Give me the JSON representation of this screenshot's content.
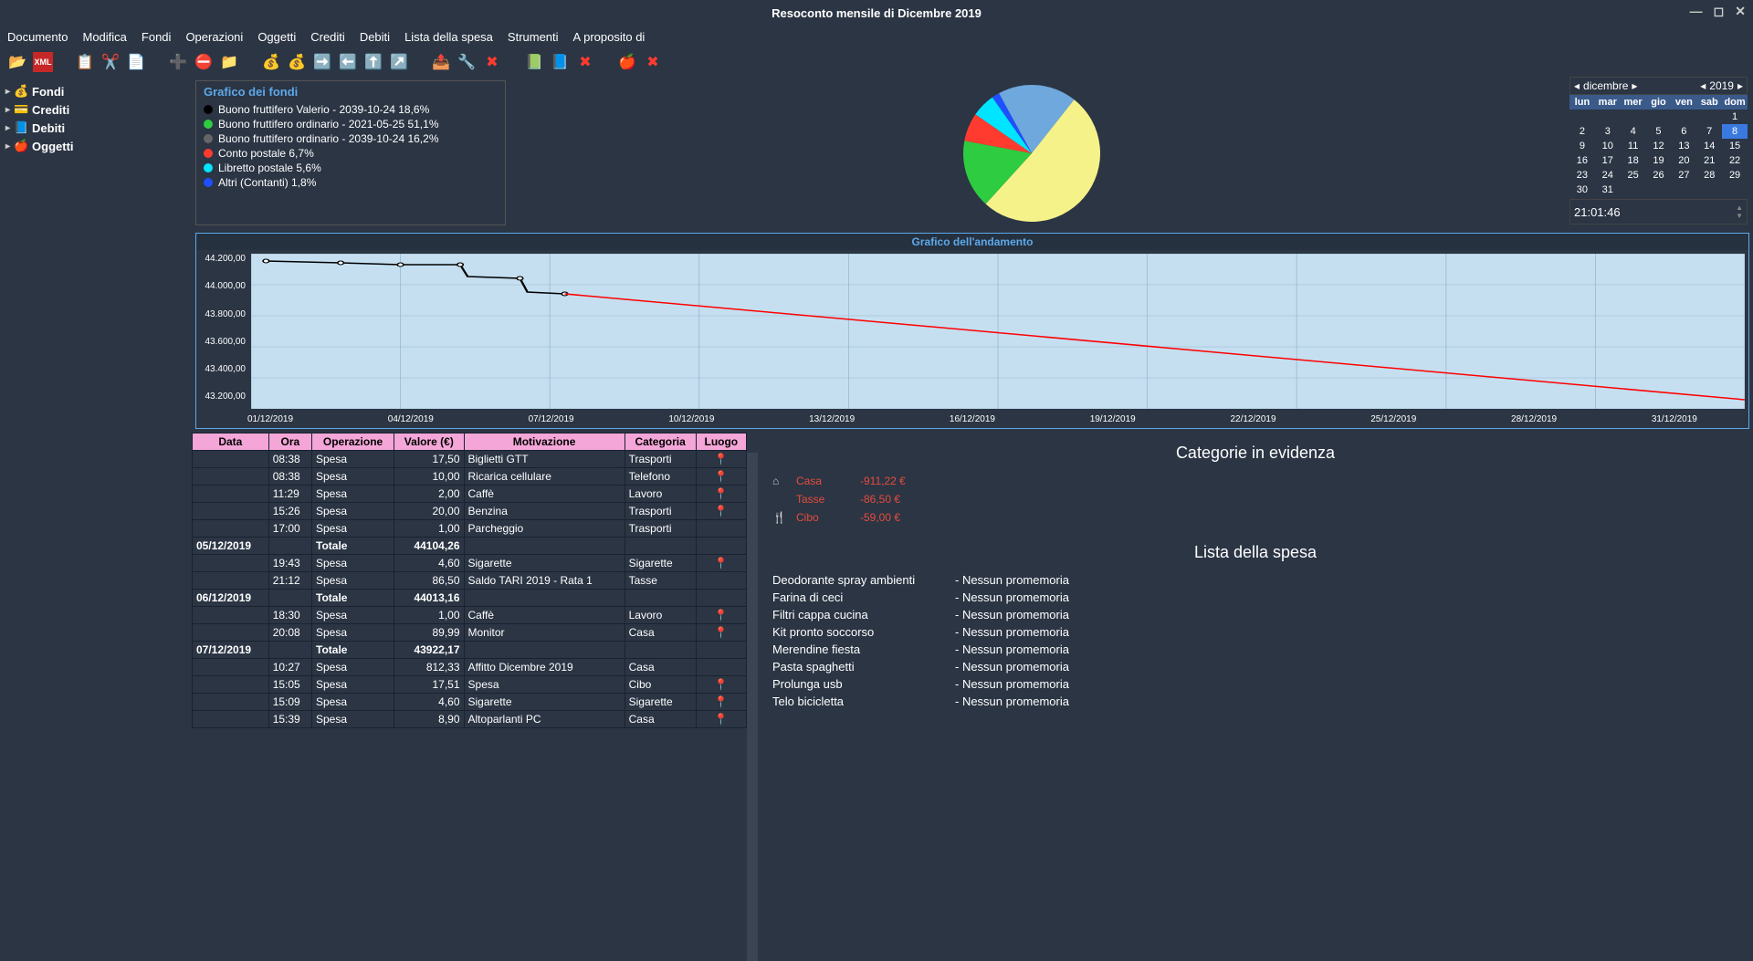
{
  "window": {
    "title": "Resoconto mensile di Dicembre 2019"
  },
  "menu": [
    "Documento",
    "Modifica",
    "Fondi",
    "Operazioni",
    "Oggetti",
    "Crediti",
    "Debiti",
    "Lista della spesa",
    "Strumenti",
    "A proposito di"
  ],
  "sidebar": [
    {
      "label": "Fondi",
      "icon": "💰"
    },
    {
      "label": "Crediti",
      "icon": "💳"
    },
    {
      "label": "Debiti",
      "icon": "📘"
    },
    {
      "label": "Oggetti",
      "icon": "🍎"
    }
  ],
  "legend": {
    "title": "Grafico dei fondi",
    "items": [
      {
        "color": "#000000",
        "label": "Buono fruttifero Valerio - 2039-10-24 18,6%"
      },
      {
        "color": "#2ecc40",
        "label": "Buono fruttifero ordinario - 2021-05-25 51,1%"
      },
      {
        "color": "#666666",
        "label": "Buono fruttifero ordinario - 2039-10-24 16,2%"
      },
      {
        "color": "#ff3b30",
        "label": "Conto postale 6,7%"
      },
      {
        "color": "#00e5ff",
        "label": "Libretto postale 5,6%"
      },
      {
        "color": "#1e50ff",
        "label": "Altri (Contanti) 1,8%"
      }
    ]
  },
  "pie": {
    "slices": [
      {
        "color": "#6fa8dc",
        "pct": 18.6
      },
      {
        "color": "#f6f28a",
        "pct": 51.1
      },
      {
        "color": "#2ecc40",
        "pct": 16.2
      },
      {
        "color": "#ff3b30",
        "pct": 6.7
      },
      {
        "color": "#00e5ff",
        "pct": 5.6
      },
      {
        "color": "#1e50ff",
        "pct": 1.8
      }
    ]
  },
  "trend": {
    "title": "Grafico dell'andamento",
    "ylabels": [
      "44.200,00",
      "44.000,00",
      "43.800,00",
      "43.600,00",
      "43.400,00",
      "43.200,00"
    ],
    "xlabels": [
      "01/12/2019",
      "04/12/2019",
      "07/12/2019",
      "10/12/2019",
      "13/12/2019",
      "16/12/2019",
      "19/12/2019",
      "22/12/2019",
      "25/12/2019",
      "28/12/2019",
      "31/12/2019"
    ],
    "background": "#c5dff0",
    "line1_color": "#000000",
    "line2_color": "#ff0000"
  },
  "table": {
    "headers": [
      "Data",
      "Ora",
      "Operazione",
      "Valore (€)",
      "Motivazione",
      "Categoria",
      "Luogo"
    ],
    "rows": [
      {
        "data": "",
        "ora": "08:38",
        "op": "Spesa",
        "val": "17,50",
        "mot": "Biglietti GTT",
        "cat": "Trasporti",
        "loc": true
      },
      {
        "data": "",
        "ora": "08:38",
        "op": "Spesa",
        "val": "10,00",
        "mot": "Ricarica cellulare",
        "cat": "Telefono",
        "loc": true
      },
      {
        "data": "",
        "ora": "11:29",
        "op": "Spesa",
        "val": "2,00",
        "mot": "Caffè",
        "cat": "Lavoro",
        "loc": true
      },
      {
        "data": "",
        "ora": "15:26",
        "op": "Spesa",
        "val": "20,00",
        "mot": "Benzina",
        "cat": "Trasporti",
        "loc": true
      },
      {
        "data": "",
        "ora": "17:00",
        "op": "Spesa",
        "val": "1,00",
        "mot": "Parcheggio",
        "cat": "Trasporti",
        "loc": false
      },
      {
        "data": "05/12/2019",
        "ora": "",
        "op": "Totale",
        "val": "44104,26",
        "mot": "",
        "cat": "",
        "tot": true
      },
      {
        "data": "",
        "ora": "19:43",
        "op": "Spesa",
        "val": "4,60",
        "mot": "Sigarette",
        "cat": "Sigarette",
        "loc": true
      },
      {
        "data": "",
        "ora": "21:12",
        "op": "Spesa",
        "val": "86,50",
        "mot": "Saldo TARI 2019 - Rata 1",
        "cat": "Tasse",
        "loc": false
      },
      {
        "data": "06/12/2019",
        "ora": "",
        "op": "Totale",
        "val": "44013,16",
        "mot": "",
        "cat": "",
        "tot": true
      },
      {
        "data": "",
        "ora": "18:30",
        "op": "Spesa",
        "val": "1,00",
        "mot": "Caffè",
        "cat": "Lavoro",
        "loc": true
      },
      {
        "data": "",
        "ora": "20:08",
        "op": "Spesa",
        "val": "89,99",
        "mot": "Monitor",
        "cat": "Casa",
        "loc": true
      },
      {
        "data": "07/12/2019",
        "ora": "",
        "op": "Totale",
        "val": "43922,17",
        "mot": "",
        "cat": "",
        "tot": true
      },
      {
        "data": "",
        "ora": "10:27",
        "op": "Spesa",
        "val": "812,33",
        "mot": "Affitto Dicembre 2019",
        "cat": "Casa",
        "loc": false
      },
      {
        "data": "",
        "ora": "15:05",
        "op": "Spesa",
        "val": "17,51",
        "mot": "Spesa",
        "cat": "Cibo",
        "loc": true
      },
      {
        "data": "",
        "ora": "15:09",
        "op": "Spesa",
        "val": "4,60",
        "mot": "Sigarette",
        "cat": "Sigarette",
        "loc": true
      },
      {
        "data": "",
        "ora": "15:39",
        "op": "Spesa",
        "val": "8,90",
        "mot": "Altoparlanti PC",
        "cat": "Casa",
        "loc": true
      }
    ]
  },
  "categories_title": "Categorie in evidenza",
  "categories": [
    {
      "icon": "⌂",
      "name": "Casa",
      "val": "-911,22 €"
    },
    {
      "icon": "",
      "name": "Tasse",
      "val": "-86,50 €"
    },
    {
      "icon": "🍴",
      "name": "Cibo",
      "val": "-59,00 €"
    }
  ],
  "shoplist_title": "Lista della spesa",
  "shoplist": [
    {
      "name": "Deodorante spray ambienti",
      "memo": "- Nessun promemoria"
    },
    {
      "name": "Farina di ceci",
      "memo": "- Nessun promemoria"
    },
    {
      "name": "Filtri cappa cucina",
      "memo": "- Nessun promemoria"
    },
    {
      "name": "Kit pronto soccorso",
      "memo": "- Nessun promemoria"
    },
    {
      "name": "Merendine fiesta",
      "memo": "- Nessun promemoria"
    },
    {
      "name": "Pasta spaghetti",
      "memo": "- Nessun promemoria"
    },
    {
      "name": "Prolunga usb",
      "memo": "- Nessun promemoria"
    },
    {
      "name": "Telo bicicletta",
      "memo": "- Nessun promemoria"
    }
  ],
  "calendar": {
    "month": "dicembre",
    "year": "2019",
    "dow": [
      "lun",
      "mar",
      "mer",
      "gio",
      "ven",
      "sab",
      "dom"
    ],
    "first_dow": 6,
    "days": 31,
    "selected": 8
  },
  "time": "21:01:46"
}
